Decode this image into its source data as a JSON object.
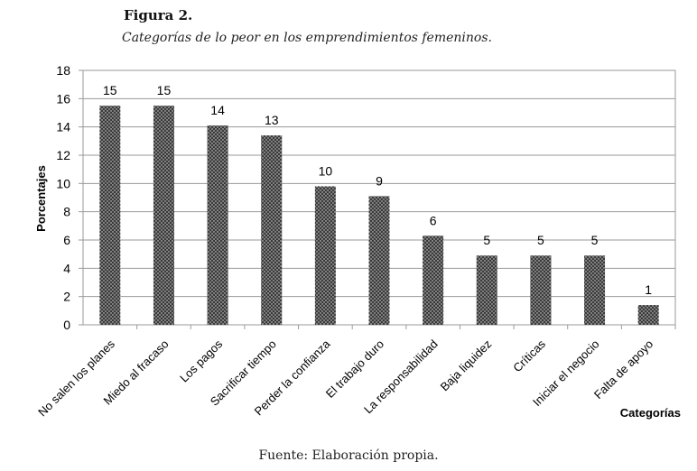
{
  "figure": {
    "label": "Figura 2.",
    "caption": "Categorías de lo peor en los emprendimientos femeninos.",
    "source": "Fuente: Elaboración propia."
  },
  "chart_data": {
    "type": "bar",
    "categories": [
      "No salen los planes",
      "Miedo al fracaso",
      "Los pagos",
      "Sacrificar tiempo",
      "Perder la confianza",
      "El trabajo duro",
      "La responsabilidad",
      "Baja liquidez",
      "Críticas",
      "Iniciar el negocio",
      "Falta de apoyo"
    ],
    "values": [
      15.5,
      15.5,
      14.1,
      13.4,
      9.8,
      9.1,
      6.3,
      4.9,
      4.9,
      4.9,
      1.4
    ],
    "data_labels": [
      "15",
      "15",
      "14",
      "13",
      "10",
      "9",
      "6",
      "5",
      "5",
      "5",
      "1"
    ],
    "xlabel": "Categorías",
    "ylabel": "Porcentajes",
    "ylim": [
      0,
      18
    ],
    "yticks": [
      0,
      2,
      4,
      6,
      8,
      10,
      12,
      14,
      16,
      18
    ],
    "grid": true,
    "legend": "none",
    "bar_color": "#3a3a3a",
    "bar_pattern": "dotted"
  }
}
